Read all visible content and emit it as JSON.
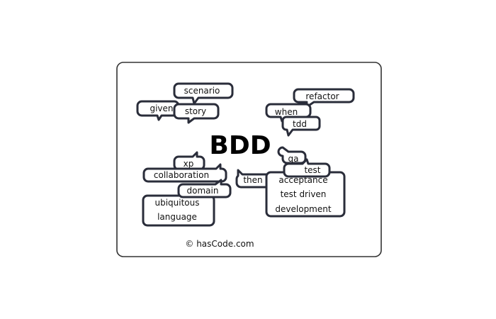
{
  "title": "BDD",
  "copyright": "© hasCode.com",
  "tags": {
    "scenario": "scenario",
    "given": "given",
    "story": "story",
    "refactor": "refactor",
    "when": "when",
    "tdd": "tdd",
    "xp": "xp",
    "collaboration": "collaboration",
    "domain": "domain",
    "ubiquitous": "ubiquitous",
    "language": "language",
    "then": "then",
    "qa": "qa",
    "test": "test",
    "acceptance": "acceptance",
    "test_driven": "test driven",
    "development": "development"
  }
}
